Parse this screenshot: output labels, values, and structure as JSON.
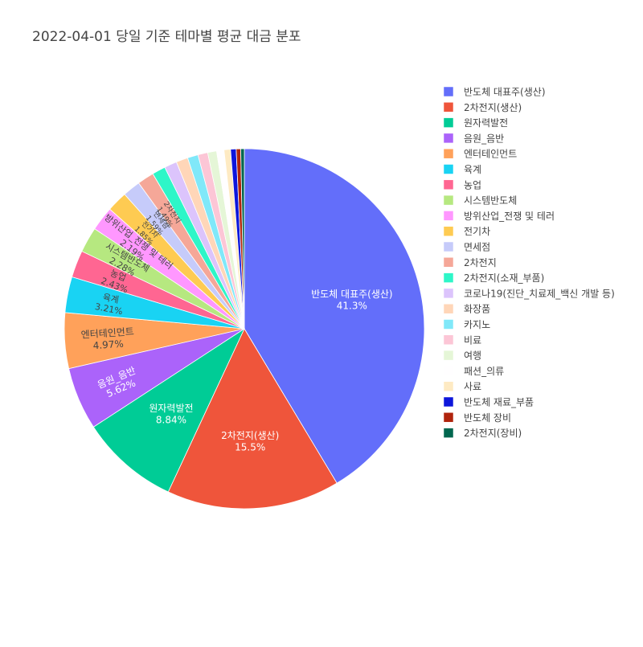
{
  "chart_data": {
    "type": "pie",
    "title": "2022-04-01 당일 기준 테마별 평균 대금 분포",
    "legend_position": "right",
    "slices": [
      {
        "label": "반도체 대표주(생산)",
        "value": 41.3,
        "pct_label": "41.3%",
        "color": "#636efa"
      },
      {
        "label": "2차전지(생산)",
        "value": 15.5,
        "pct_label": "15.5%",
        "color": "#EF553B"
      },
      {
        "label": "원자력발전",
        "value": 8.84,
        "pct_label": "8.84%",
        "color": "#00cc96"
      },
      {
        "label": "음원_음반",
        "value": 5.62,
        "pct_label": "5.62%",
        "color": "#ab63fa"
      },
      {
        "label": "엔터테인먼트",
        "value": 4.97,
        "pct_label": "4.97%",
        "color": "#FFA15A"
      },
      {
        "label": "육계",
        "value": 3.21,
        "pct_label": "3.21%",
        "color": "#19d3f3"
      },
      {
        "label": "농업",
        "value": 2.43,
        "pct_label": "2.43%",
        "color": "#FF6692"
      },
      {
        "label": "시스템반도체",
        "value": 2.28,
        "pct_label": "2.28%",
        "color": "#B6E880"
      },
      {
        "label": "방위산업_전쟁 및 테러",
        "value": 2.19,
        "pct_label": "2.19%",
        "color": "#FF97FF"
      },
      {
        "label": "전기차",
        "value": 1.85,
        "pct_label": "1.85%",
        "color": "#FECB52"
      },
      {
        "label": "면세점",
        "value": 1.59,
        "pct_label": "1.59%",
        "color": "#c6cbfa"
      },
      {
        "label": "2차전지",
        "value": 1.49,
        "pct_label": "1.49%",
        "color": "#f5a798"
      },
      {
        "label": "2차전지(소재_부품)",
        "value": 1.2,
        "pct_label": "",
        "color": "#2ef6c8"
      },
      {
        "label": "코로나19(진단_치료제_백신 개발 등)",
        "value": 1.13,
        "pct_label": "",
        "color": "#dcc4fc"
      },
      {
        "label": "화장품",
        "value": 1.05,
        "pct_label": "",
        "color": "#ffd6b8"
      },
      {
        "label": "카지노",
        "value": 0.95,
        "pct_label": "",
        "color": "#80e8f9"
      },
      {
        "label": "비료",
        "value": 0.88,
        "pct_label": "",
        "color": "#fcc6d6"
      },
      {
        "label": "여행",
        "value": 0.8,
        "pct_label": "",
        "color": "#e5f6d7"
      },
      {
        "label": "패션_의류",
        "value": 0.66,
        "pct_label": "",
        "color": "#fffeff"
      },
      {
        "label": "사료",
        "value": 0.58,
        "pct_label": "",
        "color": "#feeac3"
      },
      {
        "label": "반도체 재료_부품",
        "value": 0.5,
        "pct_label": "",
        "color": "#0d16db"
      },
      {
        "label": "반도체 장비",
        "value": 0.4,
        "pct_label": "",
        "color": "#b0240d"
      },
      {
        "label": "2차전지(장비)",
        "value": 0.32,
        "pct_label": "",
        "color": "#00674f"
      }
    ]
  }
}
